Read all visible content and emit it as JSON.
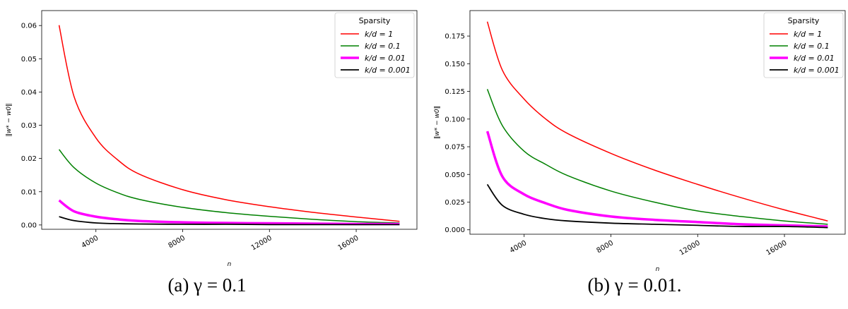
{
  "captions": [
    "(a) γ = 0.1",
    "(b) γ = 0.01."
  ],
  "chart_data": [
    {
      "type": "line",
      "xlabel": "n",
      "ylabel": "‖w* − w0‖",
      "ylim": [
        -0.0013,
        0.0645
      ],
      "xlim": [
        1500,
        18800
      ],
      "xticks": [
        4000,
        8000,
        12000,
        16000
      ],
      "xtick_labels": [
        "4000",
        "8000",
        "12000",
        "16000"
      ],
      "yticks": [
        0.0,
        0.01,
        0.02,
        0.03,
        0.04,
        0.05,
        0.06
      ],
      "ytick_labels": [
        "0.00",
        "0.01",
        "0.02",
        "0.03",
        "0.04",
        "0.05",
        "0.06"
      ],
      "grid": false,
      "legend": {
        "title": "Sparsity",
        "placement": "top-right"
      },
      "series": [
        {
          "name": "k/d = 1",
          "color": "#ff0000",
          "width": 1.5,
          "x": [
            2300,
            3000,
            4000,
            5000,
            6000,
            8000,
            10000,
            12000,
            14000,
            16000,
            18000
          ],
          "y": [
            0.0601,
            0.0385,
            0.0262,
            0.0196,
            0.0153,
            0.0106,
            0.0076,
            0.0055,
            0.0038,
            0.0024,
            0.0011
          ]
        },
        {
          "name": "k/d = 0.1",
          "color": "#008000",
          "width": 1.5,
          "x": [
            2300,
            3000,
            4000,
            5000,
            6000,
            8000,
            10000,
            12000,
            14000,
            16000,
            18000
          ],
          "y": [
            0.0227,
            0.0172,
            0.0126,
            0.0097,
            0.0077,
            0.0053,
            0.0037,
            0.0026,
            0.0017,
            0.001,
            0.0006
          ]
        },
        {
          "name": "k/d = 0.01",
          "color": "#ff00ff",
          "width": 3.5,
          "x": [
            2300,
            3000,
            4000,
            5000,
            6000,
            8000,
            10000,
            12000,
            14000,
            16000,
            18000
          ],
          "y": [
            0.0074,
            0.0041,
            0.0025,
            0.0017,
            0.0012,
            0.0008,
            0.0006,
            0.0005,
            0.0004,
            0.0003,
            0.0003
          ]
        },
        {
          "name": "k/d = 0.001",
          "color": "#000000",
          "width": 1.8,
          "x": [
            2300,
            3000,
            4000,
            5000,
            6000,
            8000,
            10000,
            12000,
            14000,
            16000,
            18000
          ],
          "y": [
            0.0025,
            0.0013,
            0.0006,
            0.0004,
            0.0003,
            0.0002,
            0.0002,
            0.0001,
            0.0001,
            0.0001,
            0.0001
          ]
        }
      ]
    },
    {
      "type": "line",
      "xlabel": "n",
      "ylabel": "‖w* − w0‖",
      "ylim": [
        -0.004,
        0.198
      ],
      "xlim": [
        1500,
        18800
      ],
      "xticks": [
        4000,
        8000,
        12000,
        16000
      ],
      "xtick_labels": [
        "4000",
        "8000",
        "12000",
        "16000"
      ],
      "yticks": [
        0.0,
        0.025,
        0.05,
        0.075,
        0.1,
        0.125,
        0.15,
        0.175
      ],
      "ytick_labels": [
        "0.000",
        "0.025",
        "0.050",
        "0.075",
        "0.100",
        "0.125",
        "0.150",
        "0.175"
      ],
      "grid": false,
      "legend": {
        "title": "Sparsity",
        "placement": "top-right"
      },
      "series": [
        {
          "name": "k/d = 1",
          "color": "#ff0000",
          "width": 1.5,
          "x": [
            2300,
            3000,
            4000,
            5000,
            6000,
            8000,
            10000,
            12000,
            14000,
            16000,
            18000
          ],
          "y": [
            0.188,
            0.144,
            0.118,
            0.1,
            0.087,
            0.069,
            0.054,
            0.041,
            0.029,
            0.018,
            0.008
          ]
        },
        {
          "name": "k/d = 0.1",
          "color": "#008000",
          "width": 1.5,
          "x": [
            2300,
            3000,
            4000,
            5000,
            6000,
            8000,
            10000,
            12000,
            14000,
            16000,
            18000
          ],
          "y": [
            0.127,
            0.094,
            0.071,
            0.059,
            0.049,
            0.035,
            0.025,
            0.017,
            0.012,
            0.008,
            0.005
          ]
        },
        {
          "name": "k/d = 0.01",
          "color": "#ff00ff",
          "width": 3.5,
          "x": [
            2300,
            3000,
            4000,
            5000,
            6000,
            8000,
            10000,
            12000,
            14000,
            16000,
            18000
          ],
          "y": [
            0.089,
            0.048,
            0.032,
            0.024,
            0.018,
            0.012,
            0.009,
            0.007,
            0.005,
            0.004,
            0.003
          ]
        },
        {
          "name": "k/d = 0.001",
          "color": "#000000",
          "width": 1.8,
          "x": [
            2300,
            3000,
            4000,
            5000,
            6000,
            8000,
            10000,
            12000,
            14000,
            16000,
            18000
          ],
          "y": [
            0.041,
            0.022,
            0.014,
            0.01,
            0.008,
            0.006,
            0.005,
            0.004,
            0.003,
            0.003,
            0.002
          ]
        }
      ]
    }
  ]
}
